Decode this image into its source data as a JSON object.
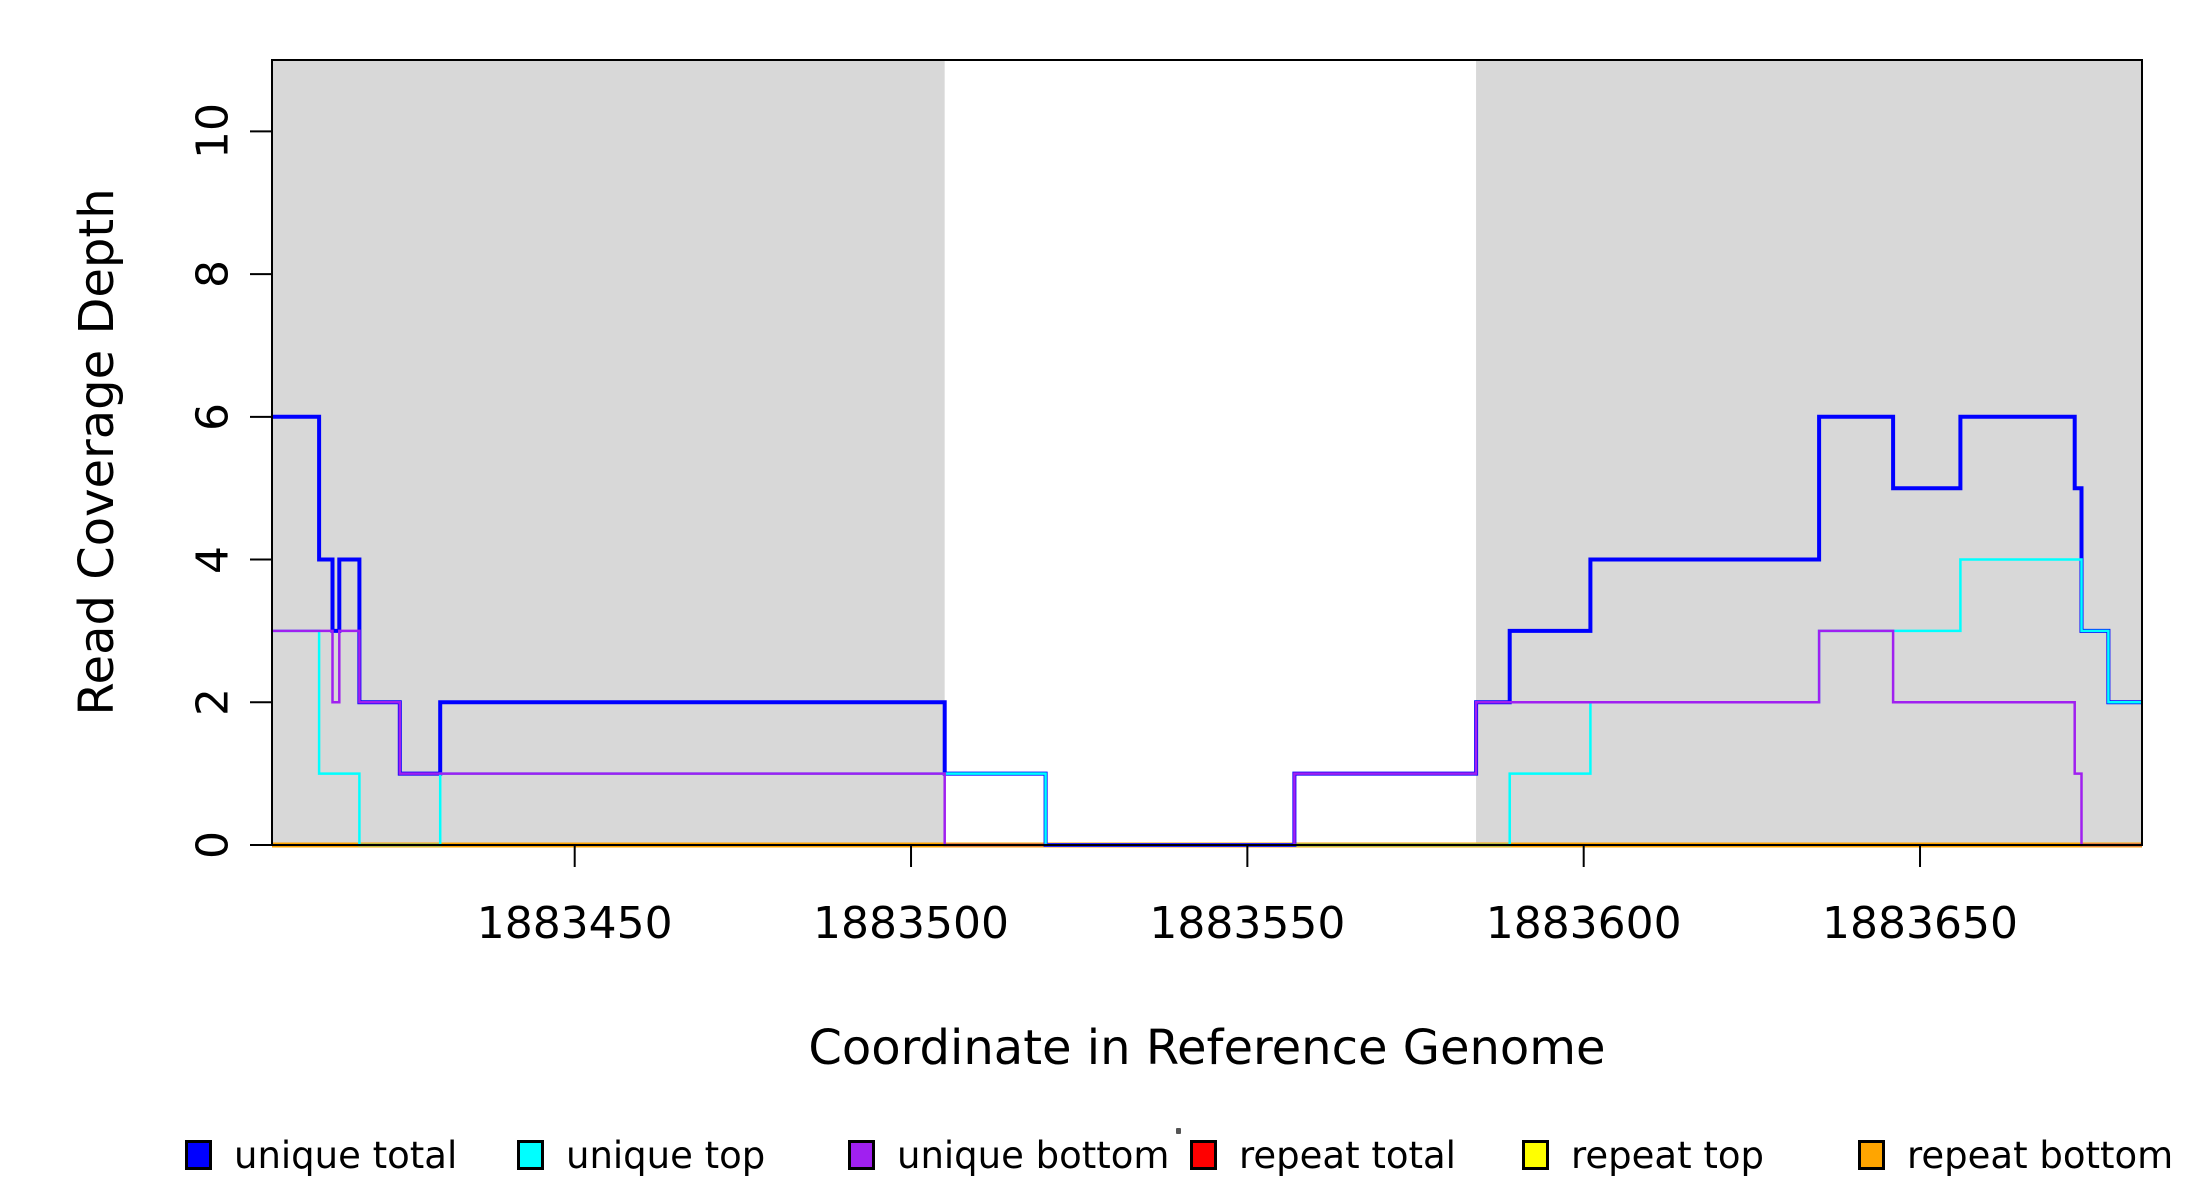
{
  "chart_data": {
    "type": "line",
    "subtype": "step-coverage",
    "title": "",
    "xlabel": "Coordinate in Reference Genome",
    "ylabel": "Read Coverage Depth",
    "xlim": [
      1883405,
      1883683
    ],
    "ylim": [
      0,
      11
    ],
    "x_ticks": [
      1883450,
      1883500,
      1883550,
      1883600,
      1883650
    ],
    "y_ticks": [
      0,
      2,
      4,
      6,
      8,
      10
    ],
    "grid": false,
    "legend_position": "bottom",
    "plot_background": "#ffffff",
    "shaded_regions": {
      "color": "#d8d8d8",
      "regions": [
        [
          1883405,
          1883505
        ],
        [
          1883584,
          1883683
        ]
      ]
    },
    "series": [
      {
        "name": "unique total",
        "color": "#0000ff",
        "line_width": 4,
        "steps": [
          [
            1883405,
            6
          ],
          [
            1883412,
            4
          ],
          [
            1883414,
            3
          ],
          [
            1883415,
            4
          ],
          [
            1883418,
            2
          ],
          [
            1883424,
            1
          ],
          [
            1883430,
            2
          ],
          [
            1883505,
            1
          ],
          [
            1883520,
            0
          ],
          [
            1883557,
            1
          ],
          [
            1883584,
            2
          ],
          [
            1883589,
            3
          ],
          [
            1883601,
            4
          ],
          [
            1883635,
            6
          ],
          [
            1883646,
            5
          ],
          [
            1883656,
            6
          ],
          [
            1883673,
            5
          ],
          [
            1883674,
            3
          ],
          [
            1883678,
            2
          ]
        ]
      },
      {
        "name": "unique top",
        "color": "#00ffff",
        "line_width": 2.5,
        "steps": [
          [
            1883405,
            3
          ],
          [
            1883412,
            1
          ],
          [
            1883418,
            0
          ],
          [
            1883430,
            1
          ],
          [
            1883520,
            0
          ],
          [
            1883589,
            1
          ],
          [
            1883601,
            2
          ],
          [
            1883635,
            3
          ],
          [
            1883656,
            4
          ],
          [
            1883674,
            3
          ],
          [
            1883678,
            2
          ]
        ]
      },
      {
        "name": "unique bottom",
        "color": "#a020f0",
        "line_width": 2.5,
        "steps": [
          [
            1883405,
            3
          ],
          [
            1883414,
            2
          ],
          [
            1883415,
            3
          ],
          [
            1883418,
            2
          ],
          [
            1883424,
            1
          ],
          [
            1883505,
            0
          ],
          [
            1883557,
            1
          ],
          [
            1883584,
            2
          ],
          [
            1883635,
            3
          ],
          [
            1883646,
            2
          ],
          [
            1883673,
            1
          ],
          [
            1883674,
            0
          ]
        ]
      },
      {
        "name": "repeat total",
        "color": "#ff0000",
        "line_width": 2,
        "steps": [
          [
            1883405,
            0
          ]
        ]
      },
      {
        "name": "repeat top",
        "color": "#ffff00",
        "line_width": 2,
        "steps": [
          [
            1883405,
            0
          ]
        ]
      },
      {
        "name": "repeat bottom",
        "color": "#ffa500",
        "line_width": 5,
        "steps": [
          [
            1883405,
            0
          ]
        ]
      }
    ],
    "draw_order": [
      "repeat total",
      "repeat top",
      "repeat bottom",
      "unique total",
      "unique top",
      "unique bottom"
    ]
  },
  "legend": {
    "items": [
      {
        "label": "unique total",
        "color": "#0000ff"
      },
      {
        "label": "unique top",
        "color": "#00ffff"
      },
      {
        "label": "unique bottom",
        "color": "#a020f0"
      },
      {
        "label": "repeat total",
        "color": "#ff0000"
      },
      {
        "label": "repeat top",
        "color": "#ffff00"
      },
      {
        "label": "repeat bottom",
        "color": "#ffa500"
      }
    ],
    "stray_dot": true
  }
}
